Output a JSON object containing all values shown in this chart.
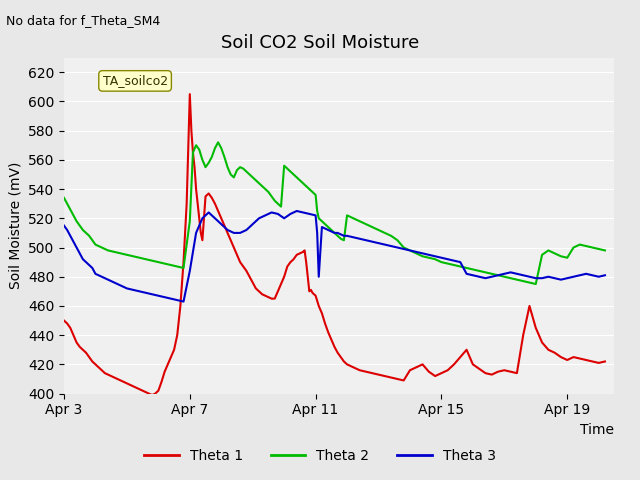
{
  "title": "Soil CO2 Soil Moisture",
  "ylabel": "Soil Moisture (mV)",
  "xlabel": "Time",
  "no_data_text": "No data for f_Theta_SM4",
  "legend_label": "TA_soilco2",
  "ylim": [
    400,
    630
  ],
  "yticks": [
    400,
    420,
    440,
    460,
    480,
    500,
    520,
    540,
    560,
    580,
    600,
    620
  ],
  "xtick_labels": [
    "Apr 3",
    "Apr 7",
    "Apr 11",
    "Apr 15",
    "Apr 19"
  ],
  "xtick_positions": [
    3,
    7,
    11,
    15,
    19
  ],
  "bg_color": "#e8e8e8",
  "plot_bg_color": "#f0f0f0",
  "line_colors": {
    "theta1": "#dd0000",
    "theta2": "#00bb00",
    "theta3": "#0000cc"
  },
  "legend_entries": [
    {
      "label": "Theta 1",
      "color": "#dd0000"
    },
    {
      "label": "Theta 2",
      "color": "#00bb00"
    },
    {
      "label": "Theta 3",
      "color": "#0000cc"
    }
  ],
  "theta1_x": [
    3.0,
    3.1,
    3.2,
    3.3,
    3.4,
    3.5,
    3.6,
    3.7,
    3.8,
    3.9,
    4.0,
    4.1,
    4.2,
    4.3,
    4.4,
    4.5,
    4.6,
    4.7,
    4.8,
    4.9,
    5.0,
    5.1,
    5.2,
    5.3,
    5.4,
    5.5,
    5.6,
    5.7,
    5.8,
    5.9,
    6.0,
    6.1,
    6.2,
    6.3,
    6.4,
    6.5,
    6.6,
    6.7,
    6.8,
    6.9,
    7.0,
    7.05,
    7.1,
    7.15,
    7.2,
    7.25,
    7.3,
    7.35,
    7.4,
    7.5,
    7.6,
    7.7,
    7.8,
    7.9,
    8.0,
    8.1,
    8.2,
    8.3,
    8.4,
    8.5,
    8.6,
    8.7,
    8.8,
    8.9,
    9.0,
    9.1,
    9.2,
    9.3,
    9.4,
    9.5,
    9.6,
    9.7,
    9.8,
    9.9,
    10.0,
    10.1,
    10.2,
    10.3,
    10.4,
    10.5,
    10.6,
    10.65,
    10.7,
    10.75,
    10.8,
    10.85,
    10.9,
    10.95,
    11.0,
    11.1,
    11.2,
    11.3,
    11.4,
    11.5,
    11.6,
    11.7,
    11.8,
    11.9,
    12.0,
    12.2,
    12.4,
    12.6,
    12.8,
    13.0,
    13.2,
    13.4,
    13.6,
    13.8,
    14.0,
    14.2,
    14.4,
    14.6,
    14.8,
    15.0,
    15.2,
    15.4,
    15.6,
    15.8,
    16.0,
    16.2,
    16.4,
    16.6,
    16.8,
    17.0,
    17.2,
    17.4,
    17.6,
    17.8,
    18.0,
    18.2,
    18.4,
    18.6,
    18.8,
    19.0,
    19.2,
    19.4,
    19.6,
    19.8,
    20.0,
    20.2
  ],
  "theta1_y": [
    450,
    448,
    445,
    440,
    435,
    432,
    430,
    428,
    425,
    422,
    420,
    418,
    416,
    414,
    413,
    412,
    411,
    410,
    409,
    408,
    407,
    406,
    405,
    404,
    403,
    402,
    401,
    400,
    399,
    400,
    402,
    408,
    415,
    420,
    425,
    430,
    440,
    460,
    490,
    530,
    605,
    580,
    565,
    555,
    540,
    530,
    520,
    510,
    505,
    535,
    537,
    534,
    530,
    525,
    520,
    515,
    510,
    505,
    500,
    495,
    490,
    487,
    484,
    480,
    476,
    472,
    470,
    468,
    467,
    466,
    465,
    465,
    470,
    475,
    480,
    487,
    490,
    492,
    495,
    496,
    497,
    498,
    490,
    480,
    470,
    471,
    469,
    468,
    467,
    460,
    455,
    448,
    442,
    437,
    432,
    428,
    425,
    422,
    420,
    418,
    416,
    415,
    414,
    413,
    412,
    411,
    410,
    409,
    416,
    418,
    420,
    415,
    412,
    414,
    416,
    420,
    425,
    430,
    420,
    417,
    414,
    413,
    415,
    416,
    415,
    414,
    440,
    460,
    445,
    435,
    430,
    428,
    425,
    423,
    425,
    424,
    423,
    422,
    421,
    422
  ],
  "theta2_x": [
    3.0,
    3.1,
    3.2,
    3.3,
    3.4,
    3.5,
    3.6,
    3.7,
    3.8,
    3.9,
    4.0,
    4.2,
    4.4,
    4.6,
    4.8,
    5.0,
    5.2,
    5.4,
    5.6,
    5.8,
    6.0,
    6.2,
    6.4,
    6.6,
    6.8,
    7.0,
    7.1,
    7.2,
    7.3,
    7.4,
    7.5,
    7.6,
    7.7,
    7.8,
    7.9,
    8.0,
    8.1,
    8.2,
    8.3,
    8.4,
    8.5,
    8.6,
    8.7,
    8.8,
    8.9,
    9.0,
    9.1,
    9.2,
    9.3,
    9.4,
    9.5,
    9.6,
    9.7,
    9.8,
    9.9,
    10.0,
    10.1,
    10.2,
    10.3,
    10.4,
    10.5,
    10.6,
    10.7,
    10.8,
    10.9,
    11.0,
    11.05,
    11.1,
    11.2,
    11.3,
    11.4,
    11.5,
    11.6,
    11.7,
    11.8,
    11.9,
    12.0,
    12.2,
    12.4,
    12.6,
    12.8,
    13.0,
    13.2,
    13.4,
    13.6,
    13.8,
    14.0,
    14.2,
    14.4,
    14.6,
    14.8,
    15.0,
    15.2,
    15.4,
    15.6,
    15.8,
    16.0,
    16.2,
    16.4,
    16.6,
    16.8,
    17.0,
    17.2,
    17.4,
    17.6,
    17.8,
    18.0,
    18.2,
    18.4,
    18.6,
    18.8,
    19.0,
    19.2,
    19.4,
    19.6,
    19.8,
    20.0,
    20.2
  ],
  "theta2_y": [
    534,
    530,
    526,
    522,
    518,
    515,
    512,
    510,
    508,
    505,
    502,
    500,
    498,
    497,
    496,
    495,
    494,
    493,
    492,
    491,
    490,
    489,
    488,
    487,
    486,
    518,
    565,
    570,
    567,
    560,
    555,
    558,
    562,
    568,
    572,
    568,
    562,
    555,
    550,
    548,
    553,
    555,
    554,
    552,
    550,
    548,
    546,
    544,
    542,
    540,
    538,
    535,
    532,
    530,
    528,
    556,
    554,
    552,
    550,
    548,
    546,
    544,
    542,
    540,
    538,
    536,
    525,
    520,
    518,
    516,
    514,
    512,
    510,
    508,
    506,
    505,
    522,
    520,
    518,
    516,
    514,
    512,
    510,
    508,
    505,
    500,
    498,
    496,
    494,
    493,
    492,
    490,
    489,
    488,
    487,
    486,
    485,
    484,
    483,
    482,
    481,
    480,
    479,
    478,
    477,
    476,
    475,
    495,
    498,
    496,
    494,
    493,
    500,
    502,
    501,
    500,
    499,
    498
  ],
  "theta3_x": [
    3.0,
    3.1,
    3.2,
    3.3,
    3.4,
    3.5,
    3.6,
    3.7,
    3.8,
    3.9,
    4.0,
    4.2,
    4.4,
    4.6,
    4.8,
    5.0,
    5.2,
    5.4,
    5.6,
    5.8,
    6.0,
    6.2,
    6.4,
    6.6,
    6.8,
    7.0,
    7.2,
    7.4,
    7.6,
    7.8,
    8.0,
    8.2,
    8.4,
    8.6,
    8.8,
    9.0,
    9.2,
    9.4,
    9.6,
    9.8,
    10.0,
    10.2,
    10.4,
    10.6,
    10.8,
    11.0,
    11.05,
    11.1,
    11.2,
    11.3,
    11.4,
    11.5,
    11.6,
    11.7,
    11.8,
    11.9,
    12.0,
    12.2,
    12.4,
    12.6,
    12.8,
    13.0,
    13.2,
    13.4,
    13.6,
    13.8,
    14.0,
    14.2,
    14.4,
    14.6,
    14.8,
    15.0,
    15.2,
    15.4,
    15.6,
    15.8,
    16.0,
    16.2,
    16.4,
    16.6,
    16.8,
    17.0,
    17.2,
    17.4,
    17.6,
    17.8,
    18.0,
    18.2,
    18.4,
    18.6,
    18.8,
    19.0,
    19.2,
    19.4,
    19.6,
    19.8,
    20.0,
    20.2
  ],
  "theta3_y": [
    515,
    512,
    508,
    504,
    500,
    496,
    492,
    490,
    488,
    486,
    482,
    480,
    478,
    476,
    474,
    472,
    471,
    470,
    469,
    468,
    467,
    466,
    465,
    464,
    463,
    484,
    510,
    520,
    524,
    520,
    516,
    512,
    510,
    510,
    512,
    516,
    520,
    522,
    524,
    523,
    520,
    523,
    525,
    524,
    523,
    522,
    510,
    480,
    514,
    513,
    512,
    511,
    510,
    510,
    509,
    508,
    508,
    507,
    506,
    505,
    504,
    503,
    502,
    501,
    500,
    499,
    498,
    497,
    496,
    495,
    494,
    493,
    492,
    491,
    490,
    482,
    481,
    480,
    479,
    480,
    481,
    482,
    483,
    482,
    481,
    480,
    479,
    479,
    480,
    479,
    478,
    479,
    480,
    481,
    482,
    481,
    480,
    481
  ]
}
